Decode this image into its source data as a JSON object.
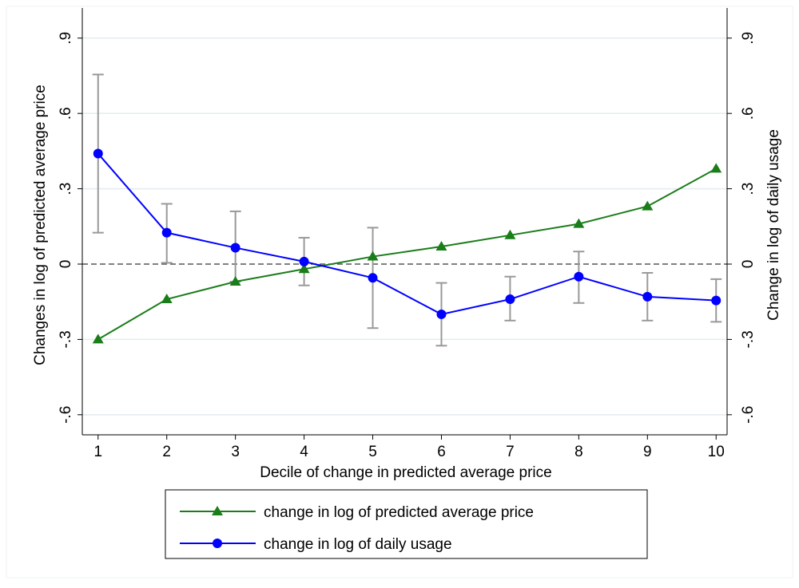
{
  "chart_data": {
    "type": "line",
    "x_label": "Decile of change in predicted average price",
    "y_label": "Changes in log of predicted average price",
    "y2_label": "Change in log of daily usage",
    "x": [
      1,
      2,
      3,
      4,
      5,
      6,
      7,
      8,
      9,
      10
    ],
    "xlim": [
      0.77,
      10.16
    ],
    "xticks": [
      1,
      2,
      3,
      4,
      5,
      6,
      7,
      8,
      9,
      10
    ],
    "ylim": [
      -0.68,
      1.02
    ],
    "yticks": [
      {
        "value": -0.6,
        "label": "-.6"
      },
      {
        "value": -0.3,
        "label": "-.3"
      },
      0,
      {
        "value": 0.3,
        "label": ".3"
      },
      {
        "value": 0.6,
        "label": ".6"
      },
      {
        "value": 0.9,
        "label": ".9"
      }
    ],
    "y2lim": [
      -0.68,
      1.02
    ],
    "y2ticks": [
      {
        "value": -0.6,
        "label": "-.6"
      },
      {
        "value": -0.3,
        "label": "-.3"
      },
      0,
      {
        "value": 0.3,
        "label": ".3"
      },
      {
        "value": 0.6,
        "label": ".6"
      },
      {
        "value": 0.9,
        "label": ".9"
      }
    ],
    "grid": true,
    "reference_line": 0,
    "series": [
      {
        "name": "change in log of predicted average price",
        "color": "#1a7d1a",
        "marker": "triangle",
        "values": [
          -0.3,
          -0.14,
          -0.07,
          -0.02,
          0.03,
          0.07,
          0.115,
          0.16,
          0.23,
          0.38
        ]
      },
      {
        "name": "change in log of daily usage",
        "color": "#0000ff",
        "marker": "circle",
        "axis": "y2",
        "values": [
          0.44,
          0.125,
          0.065,
          0.01,
          -0.055,
          -0.2,
          -0.14,
          -0.05,
          -0.13,
          -0.145
        ],
        "ci_low": [
          0.125,
          0.005,
          -0.07,
          -0.085,
          -0.255,
          -0.325,
          -0.225,
          -0.155,
          -0.225,
          -0.23
        ],
        "ci_high": [
          0.755,
          0.24,
          0.21,
          0.105,
          0.145,
          -0.075,
          -0.05,
          0.05,
          -0.035,
          -0.06
        ],
        "ci_color": "#999999"
      }
    ]
  }
}
